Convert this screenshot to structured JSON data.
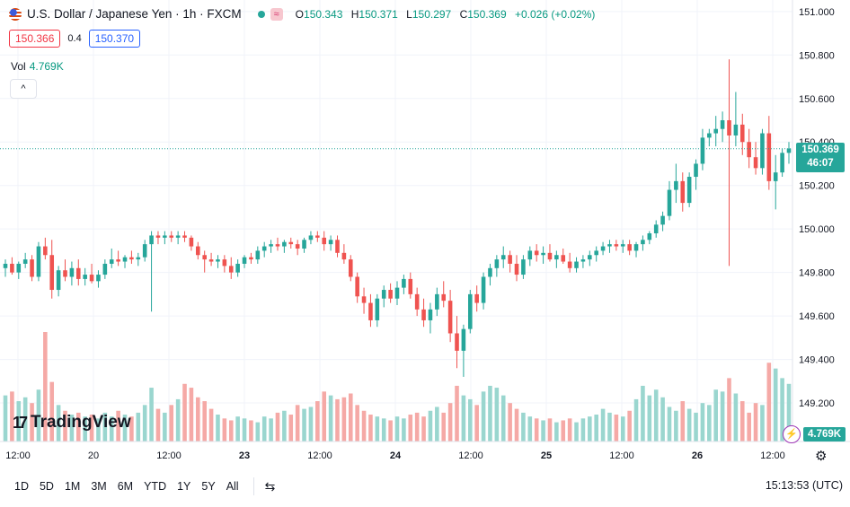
{
  "header": {
    "title": "U.S. Dollar / Japanese Yen · 1h · FXCM",
    "open_label": "O",
    "open": "150.343",
    "high_label": "H",
    "high": "150.371",
    "low_label": "L",
    "low": "150.297",
    "close_label": "C",
    "close": "150.369",
    "change": "+0.026 (+0.02%)",
    "wave_badge": "≈"
  },
  "trade": {
    "sell": "150.366",
    "spread": "0.4",
    "buy": "150.370"
  },
  "volume": {
    "label": "Vol",
    "value": "4.769K"
  },
  "collapse_icon": "^",
  "logo": {
    "mark": "17",
    "text": "TradingView"
  },
  "price_tag": {
    "price": "150.369",
    "countdown": "46:07"
  },
  "volume_tag": "4.769K",
  "bottom": {
    "ranges": [
      "1D",
      "5D",
      "1M",
      "3M",
      "6M",
      "YTD",
      "1Y",
      "5Y",
      "All"
    ],
    "clock": "15:13:53 (UTC)"
  },
  "colors": {
    "up": "#26a69a",
    "down": "#ef5350",
    "vol_up": "#9ad6cf",
    "vol_down": "#f5a9a6",
    "grid": "#f0f3fa"
  },
  "chart_data": {
    "type": "candlestick",
    "symbol": "USDJPY",
    "interval": "1h",
    "y_ticks": [
      151.0,
      150.8,
      150.6,
      150.4,
      150.2,
      150.0,
      149.8,
      149.6,
      149.4,
      149.2
    ],
    "y_tick_labels": [
      "151.000",
      "150.800",
      "150.600",
      "150.400",
      "150.200",
      "150.000",
      "149.800",
      "149.600",
      "149.400",
      "149.200"
    ],
    "ylim": [
      149.13,
      151.02
    ],
    "x_tick_labels": [
      "12:00",
      "20",
      "12:00",
      "23",
      "12:00",
      "24",
      "12:00",
      "25",
      "12:00",
      "26",
      "12:00"
    ],
    "bold_x_labels": [
      "23",
      "24",
      "25",
      "26"
    ],
    "last_price": 150.369,
    "candles": [
      [
        149.82,
        149.86,
        149.78,
        149.84,
        2.4
      ],
      [
        149.84,
        149.87,
        149.79,
        149.8,
        2.6
      ],
      [
        149.8,
        149.85,
        149.77,
        149.84,
        2.1
      ],
      [
        149.84,
        149.89,
        149.82,
        149.86,
        2.3
      ],
      [
        149.86,
        149.88,
        149.76,
        149.78,
        2.0
      ],
      [
        149.78,
        149.94,
        149.76,
        149.92,
        2.7
      ],
      [
        149.92,
        149.96,
        149.86,
        149.88,
        5.7
      ],
      [
        149.88,
        149.95,
        149.68,
        149.72,
        3.1
      ],
      [
        149.72,
        149.83,
        149.69,
        149.81,
        1.9
      ],
      [
        149.81,
        149.86,
        149.76,
        149.78,
        1.6
      ],
      [
        149.78,
        149.85,
        149.74,
        149.82,
        1.4
      ],
      [
        149.82,
        149.86,
        149.74,
        149.77,
        1.5
      ],
      [
        149.77,
        149.82,
        149.74,
        149.79,
        1.3
      ],
      [
        149.79,
        149.84,
        149.75,
        149.76,
        1.4
      ],
      [
        149.76,
        149.81,
        149.73,
        149.79,
        1.2
      ],
      [
        149.79,
        149.86,
        149.77,
        149.84,
        1.5
      ],
      [
        149.84,
        149.91,
        149.82,
        149.86,
        1.3
      ],
      [
        149.86,
        149.9,
        149.83,
        149.85,
        1.6
      ],
      [
        149.85,
        149.88,
        149.82,
        149.87,
        1.4
      ],
      [
        149.87,
        149.9,
        149.84,
        149.86,
        1.3
      ],
      [
        149.86,
        149.89,
        149.83,
        149.87,
        1.5
      ],
      [
        149.87,
        149.95,
        149.85,
        149.93,
        1.9
      ],
      [
        149.93,
        149.99,
        149.62,
        149.97,
        2.8
      ],
      [
        149.97,
        149.99,
        149.93,
        149.96,
        1.7
      ],
      [
        149.96,
        149.99,
        149.93,
        149.97,
        1.5
      ],
      [
        149.97,
        149.99,
        149.94,
        149.96,
        1.9
      ],
      [
        149.96,
        149.99,
        149.93,
        149.97,
        2.2
      ],
      [
        149.97,
        149.99,
        149.94,
        149.96,
        3.0
      ],
      [
        149.96,
        149.97,
        149.9,
        149.92,
        2.8
      ],
      [
        149.92,
        149.94,
        149.86,
        149.88,
        2.3
      ],
      [
        149.88,
        149.9,
        149.8,
        149.86,
        2.1
      ],
      [
        149.86,
        149.89,
        149.83,
        149.85,
        1.7
      ],
      [
        149.85,
        149.88,
        149.82,
        149.86,
        1.4
      ],
      [
        149.86,
        149.88,
        149.8,
        149.83,
        1.2
      ],
      [
        149.83,
        149.87,
        149.77,
        149.8,
        1.1
      ],
      [
        149.8,
        149.86,
        149.78,
        149.84,
        1.3
      ],
      [
        149.84,
        149.88,
        149.82,
        149.87,
        1.2
      ],
      [
        149.87,
        149.89,
        149.84,
        149.86,
        1.1
      ],
      [
        149.86,
        149.92,
        149.84,
        149.9,
        1.0
      ],
      [
        149.9,
        149.94,
        149.87,
        149.92,
        1.3
      ],
      [
        149.92,
        149.95,
        149.89,
        149.93,
        1.2
      ],
      [
        149.93,
        149.96,
        149.9,
        149.92,
        1.5
      ],
      [
        149.92,
        149.95,
        149.89,
        149.94,
        1.6
      ],
      [
        149.94,
        149.96,
        149.91,
        149.93,
        1.4
      ],
      [
        149.93,
        149.95,
        149.88,
        149.91,
        1.9
      ],
      [
        149.91,
        149.96,
        149.89,
        149.95,
        1.7
      ],
      [
        149.95,
        149.99,
        149.93,
        149.97,
        1.8
      ],
      [
        149.97,
        149.99,
        149.94,
        149.96,
        2.1
      ],
      [
        149.96,
        149.99,
        149.9,
        149.93,
        2.6
      ],
      [
        149.93,
        149.97,
        149.9,
        149.95,
        2.4
      ],
      [
        149.95,
        149.97,
        149.87,
        149.89,
        2.2
      ],
      [
        149.89,
        149.93,
        149.84,
        149.86,
        2.3
      ],
      [
        149.86,
        149.88,
        149.76,
        149.78,
        2.5
      ],
      [
        149.78,
        149.8,
        149.66,
        149.69,
        1.9
      ],
      [
        149.69,
        149.73,
        149.61,
        149.66,
        1.6
      ],
      [
        149.66,
        149.7,
        149.55,
        149.58,
        1.4
      ],
      [
        149.58,
        149.7,
        149.55,
        149.68,
        1.3
      ],
      [
        149.68,
        149.74,
        149.64,
        149.72,
        1.2
      ],
      [
        149.72,
        149.75,
        149.66,
        149.68,
        1.1
      ],
      [
        149.68,
        149.76,
        149.65,
        149.73,
        1.3
      ],
      [
        149.73,
        149.79,
        149.7,
        149.77,
        1.2
      ],
      [
        149.77,
        149.8,
        149.68,
        149.7,
        1.4
      ],
      [
        149.7,
        149.73,
        149.6,
        149.63,
        1.5
      ],
      [
        149.63,
        149.68,
        149.55,
        149.58,
        1.3
      ],
      [
        149.58,
        149.66,
        149.52,
        149.63,
        1.6
      ],
      [
        149.63,
        149.73,
        149.6,
        149.7,
        1.8
      ],
      [
        149.7,
        149.76,
        149.64,
        149.67,
        1.5
      ],
      [
        149.67,
        149.72,
        149.48,
        149.52,
        2.0
      ],
      [
        149.52,
        149.6,
        149.36,
        149.44,
        2.9
      ],
      [
        149.44,
        149.56,
        149.32,
        149.54,
        2.4
      ],
      [
        149.54,
        149.72,
        149.52,
        149.7,
        2.2
      ],
      [
        149.7,
        149.74,
        149.62,
        149.66,
        1.9
      ],
      [
        149.66,
        149.8,
        149.63,
        149.78,
        2.6
      ],
      [
        149.78,
        149.84,
        149.74,
        149.82,
        2.9
      ],
      [
        149.82,
        149.88,
        149.78,
        149.86,
        2.8
      ],
      [
        149.86,
        149.92,
        149.82,
        149.88,
        2.4
      ],
      [
        149.88,
        149.9,
        149.8,
        149.84,
        2.0
      ],
      [
        149.84,
        149.88,
        149.76,
        149.79,
        1.7
      ],
      [
        149.79,
        149.88,
        149.77,
        149.86,
        1.5
      ],
      [
        149.86,
        149.92,
        149.83,
        149.9,
        1.3
      ],
      [
        149.9,
        149.93,
        149.85,
        149.88,
        1.2
      ],
      [
        149.88,
        149.92,
        149.84,
        149.89,
        1.1
      ],
      [
        149.89,
        149.93,
        149.85,
        149.86,
        1.2
      ],
      [
        149.86,
        149.9,
        149.82,
        149.88,
        1.0
      ],
      [
        149.88,
        149.91,
        149.84,
        149.85,
        1.1
      ],
      [
        149.85,
        149.89,
        149.8,
        149.82,
        1.2
      ],
      [
        149.82,
        149.87,
        149.8,
        149.85,
        1.0
      ],
      [
        149.85,
        149.88,
        149.82,
        149.86,
        1.2
      ],
      [
        149.86,
        149.9,
        149.83,
        149.88,
        1.3
      ],
      [
        149.88,
        149.92,
        149.85,
        149.9,
        1.4
      ],
      [
        149.9,
        149.94,
        149.88,
        149.92,
        1.7
      ],
      [
        149.92,
        149.95,
        149.89,
        149.93,
        1.5
      ],
      [
        149.93,
        149.95,
        149.9,
        149.92,
        1.4
      ],
      [
        149.92,
        149.95,
        149.89,
        149.93,
        1.3
      ],
      [
        149.93,
        149.95,
        149.88,
        149.9,
        1.6
      ],
      [
        149.9,
        149.94,
        149.87,
        149.93,
        2.2
      ],
      [
        149.93,
        149.97,
        149.9,
        149.95,
        2.9
      ],
      [
        149.95,
        149.99,
        149.93,
        149.98,
        2.4
      ],
      [
        149.98,
        150.04,
        149.96,
        150.02,
        2.7
      ],
      [
        150.02,
        150.08,
        149.99,
        150.06,
        2.3
      ],
      [
        150.06,
        150.22,
        150.04,
        150.18,
        1.8
      ],
      [
        150.18,
        150.3,
        150.12,
        150.22,
        1.6
      ],
      [
        150.22,
        150.26,
        150.08,
        150.12,
        2.1
      ],
      [
        150.12,
        150.26,
        150.1,
        150.24,
        1.7
      ],
      [
        150.24,
        150.32,
        150.18,
        150.3,
        1.5
      ],
      [
        150.3,
        150.46,
        150.27,
        150.42,
        2.0
      ],
      [
        150.42,
        150.46,
        150.38,
        150.44,
        1.9
      ],
      [
        150.44,
        150.52,
        150.38,
        150.46,
        2.7
      ],
      [
        150.46,
        150.54,
        150.4,
        150.5,
        2.6
      ],
      [
        150.5,
        150.78,
        149.83,
        150.43,
        3.3
      ],
      [
        150.43,
        150.63,
        150.38,
        150.48,
        2.5
      ],
      [
        150.48,
        150.53,
        150.34,
        150.4,
        2.1
      ],
      [
        150.4,
        150.46,
        150.28,
        150.33,
        1.5
      ],
      [
        150.33,
        150.4,
        150.25,
        150.28,
        2.0
      ],
      [
        150.28,
        150.46,
        150.25,
        150.44,
        1.9
      ],
      [
        150.44,
        150.52,
        150.18,
        150.22,
        4.1
      ],
      [
        150.22,
        150.34,
        150.09,
        150.26,
        3.8
      ],
      [
        150.26,
        150.37,
        150.24,
        150.35,
        3.3
      ],
      [
        150.35,
        150.4,
        150.3,
        150.37,
        3.0
      ]
    ]
  }
}
